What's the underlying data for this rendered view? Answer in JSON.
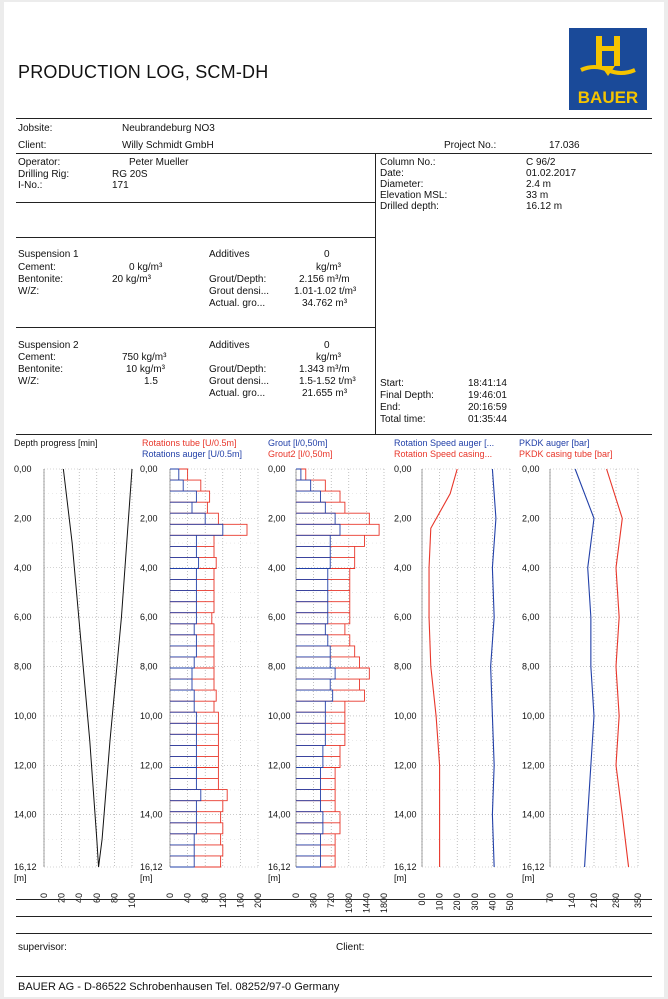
{
  "title": "PRODUCTION LOG, SCM-DH",
  "logo_text": "BAUER",
  "colors": {
    "red": "#e8362a",
    "blue": "#2240a8",
    "brand_blue": "#1a4a99",
    "brand_yellow": "#f5c400"
  },
  "header": {
    "jobsite_label": "Jobsite:",
    "jobsite": "Neubrandeburg NO3",
    "client_label": "Client:",
    "client": "Willy Schmidt GmbH",
    "project_label": "Project No.:",
    "project": "17.036"
  },
  "operator": {
    "operator_label": "Operator:",
    "operator": "Peter Mueller",
    "rig_label": "Drilling Rig:",
    "rig": "RG 20S",
    "ino_label": "I-No.:",
    "ino": "171"
  },
  "column_info": {
    "column_label": "Column No.:",
    "column": "C 96/2",
    "date_label": "Date:",
    "date": "01.02.2017",
    "diameter_label": "Diameter:",
    "diameter": "2.4 m",
    "elevation_label": "Elevation MSL:",
    "elevation": "33 m",
    "drilled_label": "Drilled depth:",
    "drilled": "16.12 m"
  },
  "suspension1": {
    "title": "Suspension 1",
    "cement_label": "Cement:",
    "cement": "0  kg/m³",
    "bentonite_label": "Bentonite:",
    "bentonite": "20  kg/m³",
    "wz_label": "W/Z:",
    "wz": "",
    "additives_label": "Additives",
    "additives": "0",
    "additives_unit": "kg/m³",
    "grout_depth_label": "Grout/Depth:",
    "grout_depth": "2.156 m³/m",
    "grout_dens_label": "Grout densi...",
    "grout_dens": "1.01-1.02 t/m³",
    "actual_label": "Actual. gro...",
    "actual": "34.762 m³"
  },
  "suspension2": {
    "title": "Suspension 2",
    "cement_label": "Cement:",
    "cement": "750  kg/m³",
    "bentonite_label": "Bentonite:",
    "bentonite": "10  kg/m³",
    "wz_label": "W/Z:",
    "wz": "1.5",
    "additives_label": "Additives",
    "additives": "0",
    "additives_unit": "kg/m³",
    "grout_depth_label": "Grout/Depth:",
    "grout_depth": "1.343 m³/m",
    "grout_dens_label": "Grout densi...",
    "grout_dens": "1.5-1.52 t/m³",
    "actual_label": "Actual. gro...",
    "actual": "21.655 m³"
  },
  "times": {
    "start_label": "Start:",
    "start": "18:41:14",
    "final_label": "Final Depth:",
    "final": "19:46:01",
    "end_label": "End:",
    "end": "20:16:59",
    "total_label": "Total time:",
    "total": "01:35:44"
  },
  "chart_headers": {
    "c1": "Depth progress [min]",
    "c2a": "Rotations tube [U/0.5m]",
    "c2b": "Rotations auger [U/0.5m]",
    "c3a": "Grout [l/0,50m]",
    "c3b": "Grout2 [l/0,50m]",
    "c4a": "Rotation Speed auger [...",
    "c4b": "Rotation Speed casing...",
    "c5a": "PKDK auger [bar]",
    "c5b": "PKDK casing tube [bar]"
  },
  "footer": {
    "supervisor_label": "supervisor:",
    "client_label": "Client:",
    "company": "BAUER AG - D-86522 Schrobenhausen  Tel. 08252/97-0 Germany"
  },
  "chart_data": [
    {
      "type": "line",
      "title": "Depth progress [min]",
      "unit_label": "[m]",
      "ylim": [
        16.12,
        0
      ],
      "xlim": [
        0,
        100
      ],
      "y_ticks": [
        "0,00",
        "2,00",
        "4,00",
        "6,00",
        "8,00",
        "10,00",
        "12,00",
        "14,00",
        "16,12"
      ],
      "x_ticks": [
        "0",
        "20",
        "40",
        "60",
        "80",
        "100"
      ],
      "series": [
        {
          "values": [
            [
              22,
              0
            ],
            [
              32,
              3
            ],
            [
              42,
              7
            ],
            [
              52,
              11
            ],
            [
              60,
              15
            ],
            [
              62,
              16.12
            ],
            [
              66,
              15
            ],
            [
              75,
              11
            ],
            [
              88,
              6
            ],
            [
              100,
              0
            ]
          ]
        }
      ]
    },
    {
      "type": "bar",
      "ylim": [
        16.12,
        0
      ],
      "xlim": [
        0,
        200
      ],
      "y_ticks": [
        "0,00",
        "2,00",
        "4,00",
        "6,00",
        "8,00",
        "10,00",
        "12,00",
        "14,00",
        "16,12"
      ],
      "x_ticks": [
        "0",
        "40",
        "80",
        "120",
        "160",
        "200"
      ],
      "series": [
        {
          "name": "Rotations tube [U/0.5m]",
          "values": [
            40,
            70,
            90,
            85,
            110,
            175,
            100,
            100,
            105,
            100,
            100,
            100,
            100,
            95,
            100,
            100,
            100,
            100,
            100,
            100,
            105,
            100,
            110,
            110,
            110,
            110,
            110,
            110,
            110,
            130,
            120,
            115,
            120,
            115,
            120,
            115
          ]
        },
        {
          "name": "Rotations auger [U/0.5m]",
          "values": [
            20,
            30,
            60,
            50,
            80,
            120,
            60,
            60,
            65,
            60,
            60,
            60,
            60,
            60,
            55,
            60,
            60,
            55,
            50,
            50,
            55,
            55,
            60,
            60,
            60,
            60,
            60,
            60,
            60,
            70,
            60,
            60,
            60,
            55,
            55,
            55
          ]
        }
      ]
    },
    {
      "type": "bar",
      "ylim": [
        16.12,
        0
      ],
      "xlim": [
        0,
        1800
      ],
      "y_ticks": [
        "0,00",
        "2,00",
        "4,00",
        "6,00",
        "8,00",
        "10,00",
        "12,00",
        "14,00",
        "16,12"
      ],
      "x_ticks": [
        "0",
        "360",
        "720",
        "1080",
        "1440",
        "1800"
      ],
      "series": [
        {
          "name": "Grout [l/0,50m]",
          "values": [
            200,
            600,
            900,
            1000,
            1500,
            1700,
            1400,
            1200,
            1200,
            1100,
            1100,
            1100,
            1100,
            1100,
            1000,
            1100,
            1200,
            1300,
            1500,
            1300,
            1400,
            1000,
            1000,
            1000,
            1000,
            900,
            900,
            800,
            800,
            800,
            800,
            900,
            900,
            800,
            800,
            800
          ]
        },
        {
          "name": "Grout2 [l/0,50m]",
          "values": [
            100,
            300,
            500,
            600,
            800,
            900,
            700,
            700,
            700,
            650,
            650,
            650,
            650,
            650,
            600,
            650,
            700,
            700,
            800,
            700,
            750,
            600,
            600,
            600,
            600,
            550,
            550,
            500,
            500,
            500,
            500,
            550,
            550,
            500,
            500,
            500
          ]
        }
      ]
    },
    {
      "type": "line",
      "ylim": [
        16.12,
        0
      ],
      "xlim": [
        0,
        50
      ],
      "y_ticks": [
        "0,00",
        "2,00",
        "4,00",
        "6,00",
        "8,00",
        "10,00",
        "12,00",
        "14,00",
        "16,12"
      ],
      "x_ticks": [
        "0.0",
        "10.0",
        "20.0",
        "30.0",
        "40.0",
        "50.0"
      ],
      "series": [
        {
          "name": "Rotation Speed auger [...",
          "values": [
            [
              40,
              0
            ],
            [
              42,
              2
            ],
            [
              40,
              4
            ],
            [
              41,
              6
            ],
            [
              39,
              8
            ],
            [
              40,
              10
            ],
            [
              41,
              12
            ],
            [
              40,
              14
            ],
            [
              41,
              16.12
            ]
          ]
        },
        {
          "name": "Rotation Speed casing...",
          "values": [
            [
              20,
              0
            ],
            [
              16,
              1
            ],
            [
              5,
              2.4
            ],
            [
              4,
              4
            ],
            [
              4,
              6
            ],
            [
              5,
              8
            ],
            [
              8,
              10
            ],
            [
              10,
              12
            ],
            [
              10,
              14
            ],
            [
              10,
              16.12
            ]
          ]
        }
      ]
    },
    {
      "type": "line",
      "ylim": [
        16.12,
        0
      ],
      "xlim": [
        70,
        350
      ],
      "y_ticks": [
        "0,00",
        "2,00",
        "4,00",
        "6,00",
        "8,00",
        "10,00",
        "12,00",
        "14,00",
        "16,12"
      ],
      "x_ticks": [
        "70",
        "140",
        "210",
        "280",
        "350"
      ],
      "series": [
        {
          "name": "PKDK auger [bar]",
          "values": [
            [
              150,
              0
            ],
            [
              210,
              2
            ],
            [
              190,
              4
            ],
            [
              200,
              6
            ],
            [
              200,
              8
            ],
            [
              210,
              10
            ],
            [
              200,
              12
            ],
            [
              190,
              14
            ],
            [
              180,
              16.12
            ]
          ]
        },
        {
          "name": "PKDK casing tube [bar]",
          "values": [
            [
              250,
              0
            ],
            [
              300,
              2
            ],
            [
              280,
              4
            ],
            [
              290,
              6
            ],
            [
              280,
              8
            ],
            [
              290,
              10
            ],
            [
              280,
              12
            ],
            [
              300,
              14
            ],
            [
              320,
              16.12
            ]
          ]
        }
      ]
    }
  ]
}
